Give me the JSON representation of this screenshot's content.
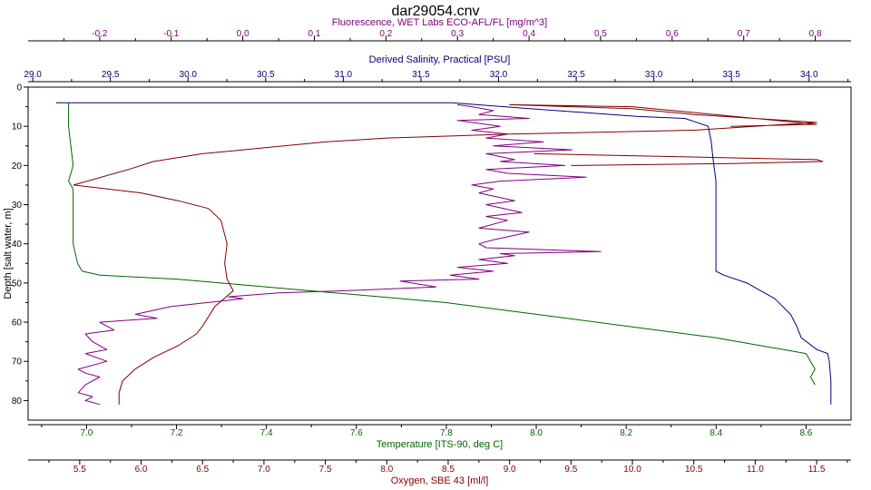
{
  "chart_data": {
    "type": "line",
    "title": "dar29054.cnv",
    "ylabel": "Depth [salt water, m]",
    "ylim": [
      0,
      85
    ],
    "y_reversed": true,
    "y_ticks": [
      "0",
      "10",
      "20",
      "30",
      "40",
      "50",
      "60",
      "70",
      "80"
    ],
    "grid": false,
    "axes": {
      "fluorescence": {
        "label": "Fluorescence, WET Labs ECO-AFL/FL [mg/m^3]",
        "position": "top-outer",
        "color": "#800080",
        "range": [
          -0.3,
          0.85
        ],
        "ticks": [
          "-0.2",
          "-0.1",
          "0.0",
          "0.1",
          "0.2",
          "0.3",
          "0.4",
          "0.5",
          "0.6",
          "0.7",
          "0.8"
        ]
      },
      "salinity": {
        "label": "Derived Salinity, Practical [PSU]",
        "position": "top-inner",
        "color": "#000080",
        "range": [
          28.97,
          34.27
        ],
        "ticks": [
          "29.0",
          "29.5",
          "30.0",
          "30.5",
          "31.0",
          "31.5",
          "32.0",
          "32.5",
          "33.0",
          "33.5",
          "34.0"
        ]
      },
      "temperature": {
        "label": "Temperature [ITS-90, deg C]",
        "position": "bottom-inner",
        "color": "#006400",
        "range": [
          6.87,
          8.7
        ],
        "ticks": [
          "7.0",
          "7.2",
          "7.4",
          "7.6",
          "7.8",
          "8.0",
          "8.2",
          "8.4",
          "8.6"
        ]
      },
      "oxygen": {
        "label": "Oxygen, SBE 43 [ml/l]",
        "position": "bottom-outer",
        "color": "#800000",
        "range": [
          5.08,
          11.78
        ],
        "ticks": [
          "5.5",
          "6.0",
          "6.5",
          "7.0",
          "7.5",
          "8.0",
          "8.5",
          "9.0",
          "9.5",
          "10.0",
          "10.5",
          "11.0",
          "11.5"
        ]
      }
    },
    "series": [
      {
        "axis": "salinity",
        "color": "#000080",
        "points": [
          [
            29.15,
            4
          ],
          [
            31.7,
            4
          ],
          [
            32.2,
            5.5
          ],
          [
            32.9,
            7.5
          ],
          [
            33.2,
            8
          ],
          [
            33.35,
            10
          ],
          [
            33.37,
            14
          ],
          [
            33.38,
            18
          ],
          [
            33.4,
            24
          ],
          [
            33.4,
            40
          ],
          [
            33.4,
            47
          ],
          [
            33.45,
            48
          ],
          [
            33.6,
            50
          ],
          [
            33.78,
            54
          ],
          [
            33.88,
            58
          ],
          [
            33.92,
            61
          ],
          [
            33.95,
            64
          ],
          [
            34.05,
            67
          ],
          [
            34.12,
            68
          ],
          [
            34.13,
            70
          ],
          [
            34.14,
            75
          ],
          [
            34.14,
            81
          ]
        ]
      },
      {
        "axis": "fluorescence",
        "color": "#800080",
        "points": [
          [
            0.3,
            4.5
          ],
          [
            0.32,
            5
          ],
          [
            0.35,
            6
          ],
          [
            0.33,
            7
          ],
          [
            0.4,
            8
          ],
          [
            0.3,
            8.5
          ],
          [
            0.36,
            10
          ],
          [
            0.32,
            11
          ],
          [
            0.37,
            12
          ],
          [
            0.34,
            13
          ],
          [
            0.42,
            14
          ],
          [
            0.35,
            15
          ],
          [
            0.46,
            16
          ],
          [
            0.34,
            17
          ],
          [
            0.38,
            18.5
          ],
          [
            0.36,
            19
          ],
          [
            0.45,
            20
          ],
          [
            0.34,
            21
          ],
          [
            0.37,
            22
          ],
          [
            0.48,
            23
          ],
          [
            0.36,
            24
          ],
          [
            0.32,
            25
          ],
          [
            0.35,
            26
          ],
          [
            0.33,
            27
          ],
          [
            0.38,
            29
          ],
          [
            0.34,
            30
          ],
          [
            0.39,
            32
          ],
          [
            0.34,
            33
          ],
          [
            0.37,
            34
          ],
          [
            0.33,
            36
          ],
          [
            0.4,
            37
          ],
          [
            0.35,
            39
          ],
          [
            0.33,
            40
          ],
          [
            0.34,
            41
          ],
          [
            0.5,
            42
          ],
          [
            0.36,
            42.5
          ],
          [
            0.38,
            43
          ],
          [
            0.33,
            44
          ],
          [
            0.37,
            45
          ],
          [
            0.3,
            46
          ],
          [
            0.35,
            47
          ],
          [
            0.29,
            48
          ],
          [
            0.33,
            49
          ],
          [
            0.22,
            49.5
          ],
          [
            0.27,
            51
          ],
          [
            0.14,
            52
          ],
          [
            0.05,
            52.5
          ],
          [
            -0.02,
            53.5
          ],
          [
            0.0,
            54
          ],
          [
            -0.05,
            55
          ],
          [
            -0.1,
            56
          ],
          [
            -0.15,
            58
          ],
          [
            -0.12,
            59
          ],
          [
            -0.2,
            60
          ],
          [
            -0.18,
            62
          ],
          [
            -0.22,
            63
          ],
          [
            -0.21,
            65
          ],
          [
            -0.19,
            67
          ],
          [
            -0.22,
            68
          ],
          [
            -0.19,
            70
          ],
          [
            -0.23,
            72
          ],
          [
            -0.22,
            73
          ],
          [
            -0.2,
            74
          ],
          [
            -0.22,
            76
          ],
          [
            -0.23,
            78
          ],
          [
            -0.21,
            79
          ],
          [
            -0.22,
            80
          ],
          [
            -0.2,
            81
          ]
        ]
      },
      {
        "axis": "temperature",
        "color": "#006400",
        "points": [
          [
            6.96,
            4
          ],
          [
            6.96,
            10
          ],
          [
            6.97,
            20
          ],
          [
            6.96,
            24
          ],
          [
            6.97,
            26
          ],
          [
            6.97,
            35
          ],
          [
            6.97,
            40
          ],
          [
            6.98,
            45
          ],
          [
            6.99,
            47
          ],
          [
            7.03,
            48
          ],
          [
            7.2,
            49
          ],
          [
            7.4,
            51
          ],
          [
            7.6,
            53
          ],
          [
            7.8,
            55
          ],
          [
            8.0,
            58
          ],
          [
            8.2,
            61
          ],
          [
            8.4,
            64
          ],
          [
            8.5,
            66
          ],
          [
            8.55,
            67
          ],
          [
            8.6,
            68
          ],
          [
            8.61,
            70
          ],
          [
            8.62,
            72
          ],
          [
            8.61,
            74
          ],
          [
            8.62,
            76
          ]
        ]
      },
      {
        "axis": "oxygen",
        "color": "#800000",
        "points": [
          [
            5.82,
            81
          ],
          [
            5.82,
            78
          ],
          [
            5.85,
            75
          ],
          [
            5.95,
            72
          ],
          [
            6.1,
            69
          ],
          [
            6.3,
            66
          ],
          [
            6.45,
            63
          ],
          [
            6.5,
            61
          ],
          [
            6.6,
            56
          ],
          [
            6.75,
            52
          ],
          [
            6.7,
            49
          ],
          [
            6.68,
            45
          ],
          [
            6.7,
            40
          ],
          [
            6.65,
            34
          ],
          [
            6.55,
            31
          ],
          [
            6.3,
            29
          ],
          [
            6.0,
            27
          ],
          [
            5.45,
            25
          ],
          [
            5.9,
            21
          ],
          [
            6.1,
            19
          ],
          [
            6.5,
            17
          ],
          [
            7.0,
            15.5
          ],
          [
            7.5,
            14
          ],
          [
            8.0,
            13
          ],
          [
            9.0,
            12
          ],
          [
            10.5,
            11
          ],
          [
            11.5,
            9
          ],
          [
            10.5,
            7
          ],
          [
            10.0,
            5.5
          ],
          [
            9.5,
            5
          ],
          [
            9.0,
            4.5
          ],
          [
            10.0,
            5
          ],
          [
            11.5,
            9.5
          ],
          [
            10.8,
            10
          ]
        ]
      },
      {
        "axis": "oxygen",
        "color": "#800000",
        "points": [
          [
            9.2,
            17
          ],
          [
            11.5,
            18.5
          ],
          [
            11.55,
            19
          ],
          [
            10.8,
            19.5
          ],
          [
            9.5,
            20
          ]
        ]
      }
    ]
  }
}
